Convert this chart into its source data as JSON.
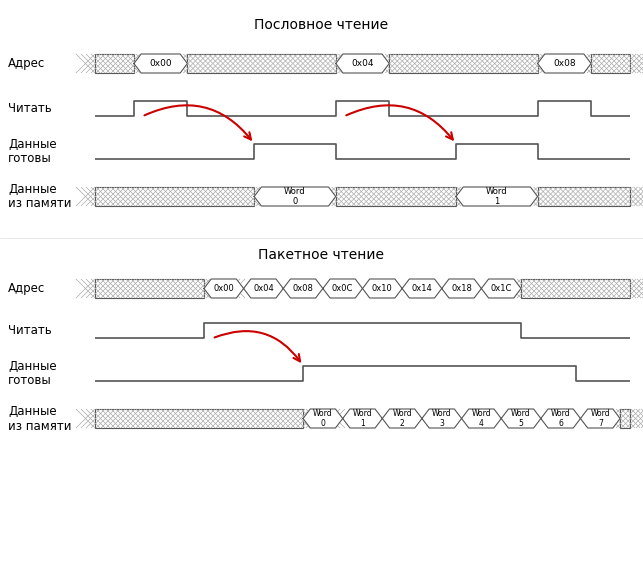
{
  "title1": "Пословное чтение",
  "title2": "Пакетное чтение",
  "label_adres": "Адрес",
  "label_chitat": "Читать",
  "label_gotovy": "Данные\nготовы",
  "label_pamyat": "Данные\nиз памяти",
  "bg_color": "#ffffff",
  "signal_color": "#555555",
  "arrow_color": "#cc0000",
  "hex_labels_top": [
    "0x00",
    "0x04",
    "0x08"
  ],
  "hex_labels_bot": [
    "0x00",
    "0x04",
    "0x08",
    "0x0C",
    "0x10",
    "0x14",
    "0x18",
    "0x1C"
  ],
  "word_labels_top": [
    "Word\n0",
    "Word\n1"
  ],
  "word_labels_bot": [
    "Word\n0",
    "Word\n1",
    "Word\n2",
    "Word\n3",
    "Word\n4",
    "Word\n5",
    "Word\n6",
    "Word\n7"
  ],
  "figw": 6.43,
  "figh": 5.68,
  "dpi": 100
}
